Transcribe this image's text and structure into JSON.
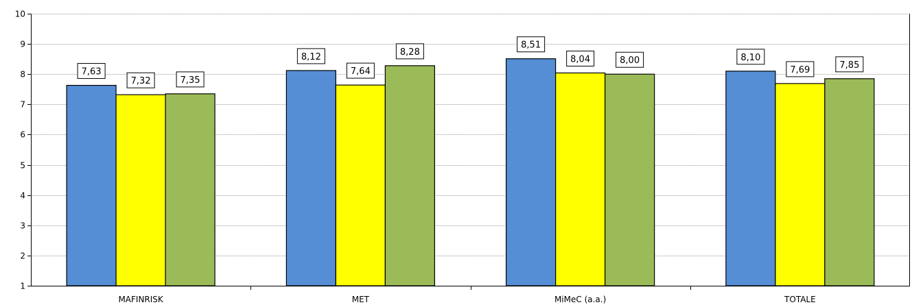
{
  "chart_data": {
    "type": "bar",
    "categories": [
      "MAFINRISK",
      "MET",
      "MiMeC (a.a.)",
      "TOTALE"
    ],
    "series": [
      {
        "values": [
          7.63,
          8.12,
          8.51,
          8.1
        ],
        "color": "#558ed5"
      },
      {
        "values": [
          7.32,
          7.64,
          8.04,
          7.69
        ],
        "color": "#ffff00"
      },
      {
        "values": [
          7.35,
          8.28,
          8.0,
          7.85
        ],
        "color": "#9bbb59"
      }
    ],
    "data_labels": [
      [
        "7,63",
        "8,12",
        "8,51",
        "8,10"
      ],
      [
        "7,32",
        "7,64",
        "8,04",
        "7,69"
      ],
      [
        "7,35",
        "8,28",
        "8,00",
        "7,85"
      ]
    ],
    "yticks": [
      "1",
      "2",
      "3",
      "4",
      "5",
      "6",
      "7",
      "8",
      "9",
      "10"
    ],
    "ylim": [
      1,
      10
    ],
    "grid": true,
    "title": "",
    "xlabel": "",
    "ylabel": ""
  }
}
